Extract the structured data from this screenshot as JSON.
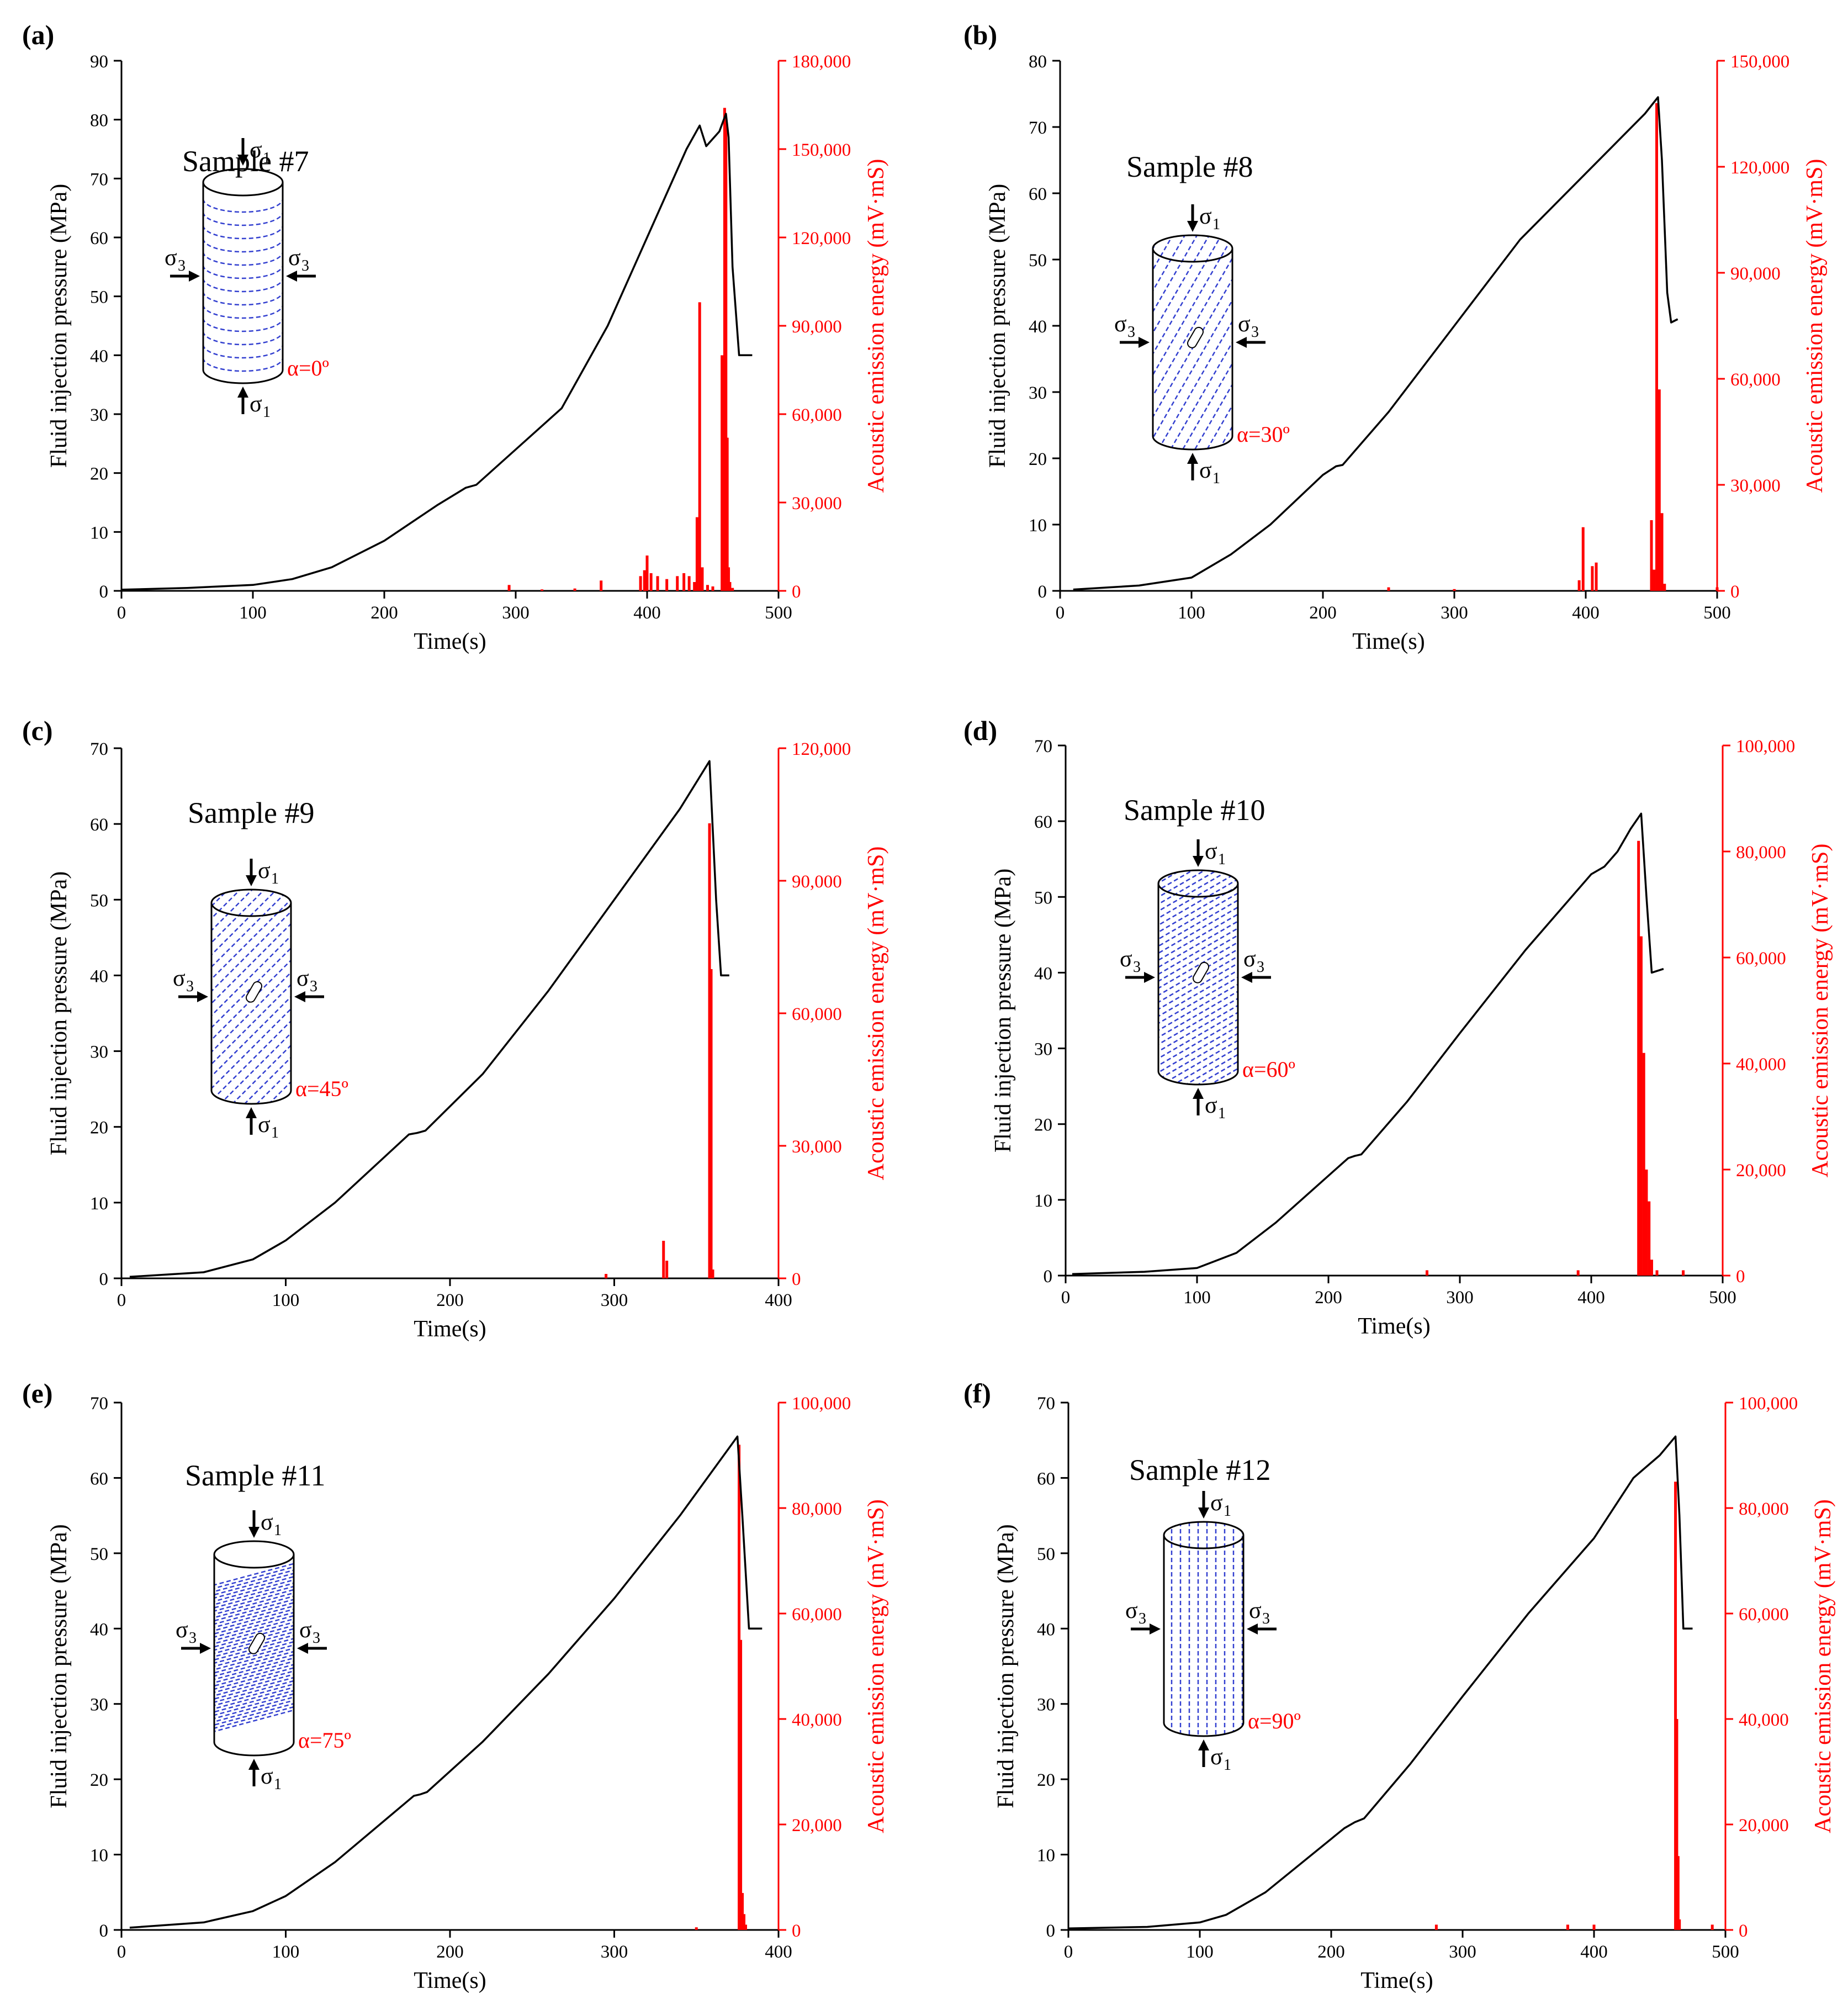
{
  "chart_data": [
    {
      "type": "line",
      "panel_label": "(a)",
      "title": "Sample #7",
      "alpha_label": "α=0º",
      "alpha_deg": 0,
      "xlabel": "Time(s)",
      "ylabel": "Fluid injection pressure (MPa)",
      "y2label": "Acoustic emission energy (mV·mS)",
      "xlim": [
        0,
        500
      ],
      "ylim": [
        0,
        90
      ],
      "y2lim": [
        0,
        180000
      ],
      "x_ticks": [
        0,
        100,
        200,
        300,
        400,
        500
      ],
      "y_ticks": [
        0,
        10,
        20,
        30,
        40,
        50,
        60,
        70,
        80,
        90
      ],
      "y2_ticks": [
        0,
        30000,
        60000,
        90000,
        120000,
        150000,
        180000
      ],
      "x_tick_labels": [
        "0",
        "100",
        "200",
        "300",
        "400",
        "500"
      ],
      "y_tick_labels": [
        "0",
        "10",
        "20",
        "30",
        "40",
        "50",
        "60",
        "70",
        "80",
        "90"
      ],
      "y2_tick_labels": [
        "0",
        "30,000",
        "60,000",
        "90,000",
        "120,000",
        "150,000",
        "180,000"
      ],
      "pressure": {
        "x": [
          0,
          50,
          100,
          130,
          160,
          200,
          240,
          262,
          270,
          300,
          335,
          370,
          400,
          430,
          440,
          445,
          455,
          460,
          462,
          465,
          470,
          480
        ],
        "y": [
          0.2,
          0.5,
          1.0,
          2.0,
          4.0,
          8.5,
          14.5,
          17.5,
          18.0,
          24.0,
          31.0,
          45.0,
          60.0,
          75.0,
          79.0,
          75.5,
          78.0,
          81.0,
          77.0,
          55.0,
          40.0,
          40.0
        ]
      },
      "ae": {
        "x": [
          295,
          320,
          345,
          365,
          395,
          398,
          400,
          403,
          408,
          415,
          423,
          428,
          432,
          436,
          438,
          440,
          442,
          446,
          450,
          457,
          459,
          460,
          461,
          462,
          463,
          465
        ],
        "y": [
          2000,
          500,
          800,
          3500,
          5000,
          7000,
          12000,
          6000,
          5000,
          4000,
          5000,
          6000,
          5000,
          3000,
          25000,
          98000,
          8000,
          2000,
          1500,
          80000,
          164000,
          160000,
          52000,
          8000,
          3000,
          1000
        ]
      }
    },
    {
      "type": "line",
      "panel_label": "(b)",
      "title": "Sample #8",
      "alpha_label": "α=30º",
      "alpha_deg": 30,
      "xlabel": "Time(s)",
      "ylabel": "Fluid injection pressure (MPa)",
      "y2label": "Acoustic emission energy (mV·mS)",
      "xlim": [
        0,
        500
      ],
      "ylim": [
        0,
        80
      ],
      "y2lim": [
        0,
        150000
      ],
      "x_ticks": [
        0,
        100,
        200,
        300,
        400,
        500
      ],
      "y_ticks": [
        0,
        10,
        20,
        30,
        40,
        50,
        60,
        70,
        80
      ],
      "y2_ticks": [
        0,
        30000,
        60000,
        90000,
        120000,
        150000
      ],
      "x_tick_labels": [
        "0",
        "100",
        "200",
        "300",
        "400",
        "500"
      ],
      "y_tick_labels": [
        "0",
        "10",
        "20",
        "30",
        "40",
        "50",
        "60",
        "70",
        "80"
      ],
      "y2_tick_labels": [
        "0",
        "30,000",
        "60,000",
        "90,000",
        "120,000",
        "150,000"
      ],
      "pressure": {
        "x": [
          10,
          60,
          100,
          130,
          160,
          200,
          210,
          215,
          250,
          300,
          350,
          400,
          430,
          445,
          455,
          458,
          462,
          465,
          470
        ],
        "y": [
          0.2,
          0.8,
          2.0,
          5.5,
          10.0,
          17.5,
          18.8,
          19.0,
          27.0,
          40.0,
          53.0,
          63.0,
          69.0,
          72.0,
          74.5,
          65.0,
          45.0,
          40.5,
          41.0
        ]
      },
      "ae": {
        "x": [
          250,
          300,
          395,
          398,
          405,
          408,
          450,
          452,
          454,
          456,
          458,
          460,
          500
        ],
        "y": [
          1000,
          500,
          3000,
          18000,
          7000,
          8000,
          20000,
          6000,
          138000,
          57000,
          22000,
          2000,
          1000
        ]
      }
    },
    {
      "type": "line",
      "panel_label": "(c)",
      "title": "Sample #9",
      "alpha_label": "α=45º",
      "alpha_deg": 45,
      "xlabel": "Time(s)",
      "ylabel": "Fluid injection pressure (MPa)",
      "y2label": "Acoustic emission energy (mV·mS)",
      "xlim": [
        0,
        400
      ],
      "ylim": [
        0,
        70
      ],
      "y2lim": [
        0,
        120000
      ],
      "x_ticks": [
        0,
        100,
        200,
        300,
        400
      ],
      "y_ticks": [
        0,
        10,
        20,
        30,
        40,
        50,
        60,
        70
      ],
      "y2_ticks": [
        0,
        30000,
        60000,
        90000,
        120000
      ],
      "x_tick_labels": [
        "0",
        "100",
        "200",
        "300",
        "400"
      ],
      "y_tick_labels": [
        "0",
        "10",
        "20",
        "30",
        "40",
        "50",
        "60",
        "70"
      ],
      "y2_tick_labels": [
        "0",
        "30,000",
        "60,000",
        "90,000",
        "120,000"
      ],
      "pressure": {
        "x": [
          5,
          50,
          80,
          100,
          130,
          175,
          180,
          185,
          220,
          260,
          300,
          340,
          358,
          362,
          365,
          370
        ],
        "y": [
          0.2,
          0.8,
          2.5,
          5.0,
          10.0,
          19.0,
          19.2,
          19.5,
          27.0,
          38.0,
          50.0,
          62.0,
          68.3,
          50.0,
          40.0,
          40.0
        ]
      },
      "ae": {
        "x": [
          295,
          330,
          332,
          358,
          359,
          360
        ],
        "y": [
          1000,
          8500,
          4000,
          103000,
          70000,
          2000
        ]
      }
    },
    {
      "type": "line",
      "panel_label": "(d)",
      "title": "Sample #10",
      "alpha_label": "α=60º",
      "alpha_deg": 60,
      "xlabel": "Time(s)",
      "ylabel": "Fluid injection pressure (MPa)",
      "y2label": "Acoustic emission energy (mV·mS)",
      "xlim": [
        0,
        500
      ],
      "ylim": [
        0,
        70
      ],
      "y2lim": [
        0,
        100000
      ],
      "x_ticks": [
        0,
        100,
        200,
        300,
        400,
        500
      ],
      "y_ticks": [
        0,
        10,
        20,
        30,
        40,
        50,
        60,
        70
      ],
      "y2_ticks": [
        0,
        20000,
        40000,
        60000,
        80000,
        100000
      ],
      "x_tick_labels": [
        "0",
        "100",
        "200",
        "300",
        "400",
        "500"
      ],
      "y_tick_labels": [
        "0",
        "10",
        "20",
        "30",
        "40",
        "50",
        "60",
        "70"
      ],
      "y2_tick_labels": [
        "0",
        "20,000",
        "40,000",
        "60,000",
        "80,000",
        "100,000"
      ],
      "pressure": {
        "x": [
          5,
          60,
          100,
          130,
          160,
          215,
          220,
          225,
          260,
          300,
          350,
          400,
          410,
          420,
          430,
          438,
          442,
          446,
          455
        ],
        "y": [
          0.2,
          0.5,
          1.0,
          3.0,
          7.0,
          15.5,
          15.8,
          16.0,
          23.0,
          32.0,
          43.0,
          53.0,
          54.0,
          56.0,
          59.0,
          61.0,
          50.0,
          40.0,
          40.5
        ]
      },
      "ae": {
        "x": [
          275,
          390,
          436,
          438,
          440,
          442,
          444,
          446,
          450,
          470
        ],
        "y": [
          1000,
          1000,
          82000,
          64000,
          42000,
          20000,
          14000,
          3000,
          1000,
          1000
        ]
      }
    },
    {
      "type": "line",
      "panel_label": "(e)",
      "title": "Sample #11",
      "alpha_label": "α=75º",
      "alpha_deg": 75,
      "xlabel": "Time(s)",
      "ylabel": "Fluid injection pressure (MPa)",
      "y2label": "Acoustic emission energy (mV·mS)",
      "xlim": [
        0,
        400
      ],
      "ylim": [
        0,
        70
      ],
      "y2lim": [
        0,
        100000
      ],
      "x_ticks": [
        0,
        100,
        200,
        300,
        400
      ],
      "y_ticks": [
        0,
        10,
        20,
        30,
        40,
        50,
        60,
        70
      ],
      "y2_ticks": [
        0,
        20000,
        40000,
        60000,
        80000,
        100000
      ],
      "x_tick_labels": [
        "0",
        "100",
        "200",
        "300",
        "400"
      ],
      "y_tick_labels": [
        "0",
        "10",
        "20",
        "30",
        "40",
        "50",
        "60",
        "70"
      ],
      "y2_tick_labels": [
        "0",
        "20,000",
        "40,000",
        "60,000",
        "80,000",
        "100,000"
      ],
      "pressure": {
        "x": [
          5,
          50,
          80,
          100,
          130,
          178,
          182,
          186,
          220,
          260,
          300,
          340,
          375,
          378,
          382,
          390
        ],
        "y": [
          0.3,
          1.0,
          2.5,
          4.5,
          9.0,
          17.8,
          18.0,
          18.3,
          25.0,
          34.0,
          44.0,
          55.0,
          65.5,
          55.0,
          40.0,
          40.0
        ]
      },
      "ae": {
        "x": [
          350,
          376,
          377,
          378,
          379,
          380
        ],
        "y": [
          500,
          92000,
          55000,
          7000,
          3000,
          1000
        ]
      }
    },
    {
      "type": "line",
      "panel_label": "(f)",
      "title": "Sample #12",
      "alpha_label": "α=90º",
      "alpha_deg": 90,
      "xlabel": "Time(s)",
      "ylabel": "Fluid injection pressure (MPa)",
      "y2label": "Acoustic emission energy (mV·mS)",
      "xlim": [
        0,
        500
      ],
      "ylim": [
        0,
        70
      ],
      "y2lim": [
        0,
        100000
      ],
      "x_ticks": [
        0,
        100,
        200,
        300,
        400,
        500
      ],
      "y_ticks": [
        0,
        10,
        20,
        30,
        40,
        50,
        60,
        70
      ],
      "y2_ticks": [
        0,
        20000,
        40000,
        60000,
        80000,
        100000
      ],
      "x_tick_labels": [
        "0",
        "100",
        "200",
        "300",
        "400",
        "500"
      ],
      "y_tick_labels": [
        "0",
        "10",
        "20",
        "30",
        "40",
        "50",
        "60",
        "70"
      ],
      "y2_tick_labels": [
        "0",
        "20,000",
        "40,000",
        "60,000",
        "80,000",
        "100,000"
      ],
      "pressure": {
        "x": [
          0,
          60,
          100,
          120,
          150,
          210,
          218,
          225,
          260,
          300,
          350,
          400,
          430,
          450,
          462,
          465,
          468,
          475
        ],
        "y": [
          0.2,
          0.4,
          1.0,
          2.0,
          5.0,
          13.5,
          14.3,
          14.8,
          22.0,
          31.0,
          42.0,
          52.0,
          60.0,
          63.0,
          65.5,
          55.0,
          40.0,
          40.0
        ]
      },
      "ae": {
        "x": [
          280,
          380,
          400,
          462,
          463,
          464,
          465,
          490
        ],
        "y": [
          1000,
          1000,
          1000,
          85000,
          40000,
          14000,
          2000,
          1000
        ]
      }
    }
  ]
}
